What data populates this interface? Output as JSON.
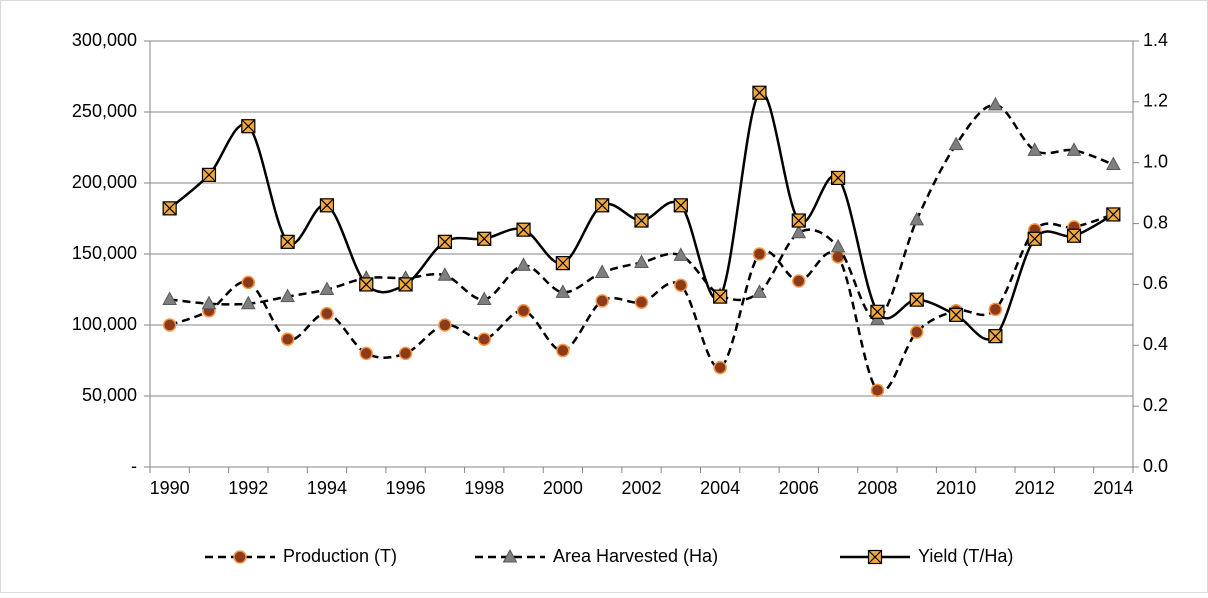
{
  "chart_data": {
    "type": "line",
    "categories": [
      "1990",
      null,
      "1992",
      null,
      "1994",
      null,
      "1996",
      null,
      "1998",
      null,
      "2000",
      null,
      "2002",
      null,
      "2004",
      null,
      "2006",
      null,
      "2008",
      null,
      "2010",
      null,
      "2012",
      null,
      "2014"
    ],
    "series": [
      {
        "name": "Production (T)",
        "color": "#000000",
        "dash": true,
        "marker": "circle",
        "marker_color": "#8b3a1a",
        "values": [
          100000,
          110000,
          130000,
          90000,
          108000,
          80000,
          80000,
          100000,
          90000,
          110000,
          82000,
          117000,
          116000,
          128000,
          70000,
          150000,
          131000,
          148000,
          54000,
          95000,
          110000,
          111000,
          167000,
          169000,
          178000
        ]
      },
      {
        "name": "Area Harvested (Ha)",
        "color": "#000000",
        "dash": true,
        "marker": "triangle",
        "marker_color": "#7f7f7f",
        "values": [
          118000,
          115000,
          115000,
          120000,
          125000,
          133000,
          133000,
          135000,
          118000,
          142000,
          123000,
          137000,
          144000,
          149000,
          121000,
          123000,
          165000,
          155000,
          104000,
          174000,
          227000,
          255000,
          223000,
          223000,
          213000
        ]
      },
      {
        "name": "Yield (T/Ha)",
        "color": "#000000",
        "dash": false,
        "marker": "xsquare",
        "marker_color": "#f2a93b",
        "axis": "y2",
        "values": [
          0.85,
          0.96,
          1.12,
          0.74,
          0.86,
          0.6,
          0.6,
          0.74,
          0.75,
          0.78,
          0.67,
          0.86,
          0.81,
          0.86,
          0.56,
          1.23,
          0.81,
          0.95,
          0.51,
          0.55,
          0.5,
          0.43,
          0.75,
          0.76,
          0.83
        ]
      }
    ],
    "ylim": [
      0,
      300000
    ],
    "yticks": [
      {
        "value": 0,
        "label": "-"
      },
      {
        "value": 50000,
        "label": "50,000"
      },
      {
        "value": 100000,
        "label": "100,000"
      },
      {
        "value": 150000,
        "label": "150,000"
      },
      {
        "value": 200000,
        "label": "200,000"
      },
      {
        "value": 250000,
        "label": "250,000"
      },
      {
        "value": 300000,
        "label": "300,000"
      }
    ],
    "y2lim": [
      0,
      1.4
    ],
    "y2ticks": [
      {
        "value": 0,
        "label": "0.0"
      },
      0.2,
      0.4,
      0.6,
      0.8,
      {
        "value": 1,
        "label": "1.0"
      },
      1.2,
      1.4
    ],
    "grid": true,
    "smooth": true,
    "legend": "bottom"
  }
}
